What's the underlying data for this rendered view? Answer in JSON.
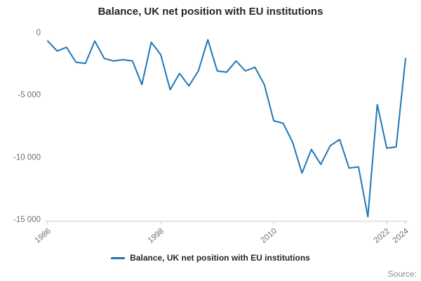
{
  "title": "Balance, UK net position with EU institutions",
  "legend": {
    "label": "Balance, UK net position with EU institutions"
  },
  "source": {
    "label": "Source:"
  },
  "chart_data": {
    "type": "line",
    "title": "Balance, UK net position with EU institutions",
    "xlabel": "",
    "ylabel": "",
    "xlim": [
      1986,
      2024
    ],
    "ylim": [
      -15000,
      0
    ],
    "grid": false,
    "legend_position": "bottom",
    "line_color": "#1f77b4",
    "axis_color": "#c9c9c9",
    "tick_text_color": "#6e6e6e",
    "x": [
      1986,
      1987,
      1988,
      1989,
      1990,
      1991,
      1992,
      1993,
      1994,
      1995,
      1996,
      1997,
      1998,
      1999,
      2000,
      2001,
      2002,
      2003,
      2004,
      2005,
      2006,
      2007,
      2008,
      2009,
      2010,
      2011,
      2012,
      2013,
      2014,
      2015,
      2016,
      2017,
      2018,
      2019,
      2020,
      2021,
      2022,
      2023,
      2024
    ],
    "values": [
      -700,
      -1500,
      -1200,
      -2400,
      -2500,
      -700,
      -2100,
      -2300,
      -2200,
      -2300,
      -4200,
      -800,
      -1800,
      -4600,
      -3300,
      -4300,
      -3100,
      -600,
      -3100,
      -3200,
      -2300,
      -3100,
      -2800,
      -4200,
      -7100,
      -7300,
      -8800,
      -11300,
      -9400,
      -10600,
      -9100,
      -8600,
      -10900,
      -10800,
      -14800,
      -5800,
      -9300,
      -9200,
      -2100
    ],
    "x_ticks": [
      {
        "year": 1986,
        "label": "1986"
      },
      {
        "year": 1998,
        "label": "1998"
      },
      {
        "year": 2010,
        "label": "2010"
      },
      {
        "year": 2022,
        "label": "2022"
      },
      {
        "year": 2024,
        "label": "2024"
      }
    ],
    "y_ticks": [
      {
        "value": 0,
        "label": "0"
      },
      {
        "value": -5000,
        "label": "-5 000"
      },
      {
        "value": -10000,
        "label": "-10 000"
      },
      {
        "value": -15000,
        "label": "-15 000"
      }
    ]
  }
}
